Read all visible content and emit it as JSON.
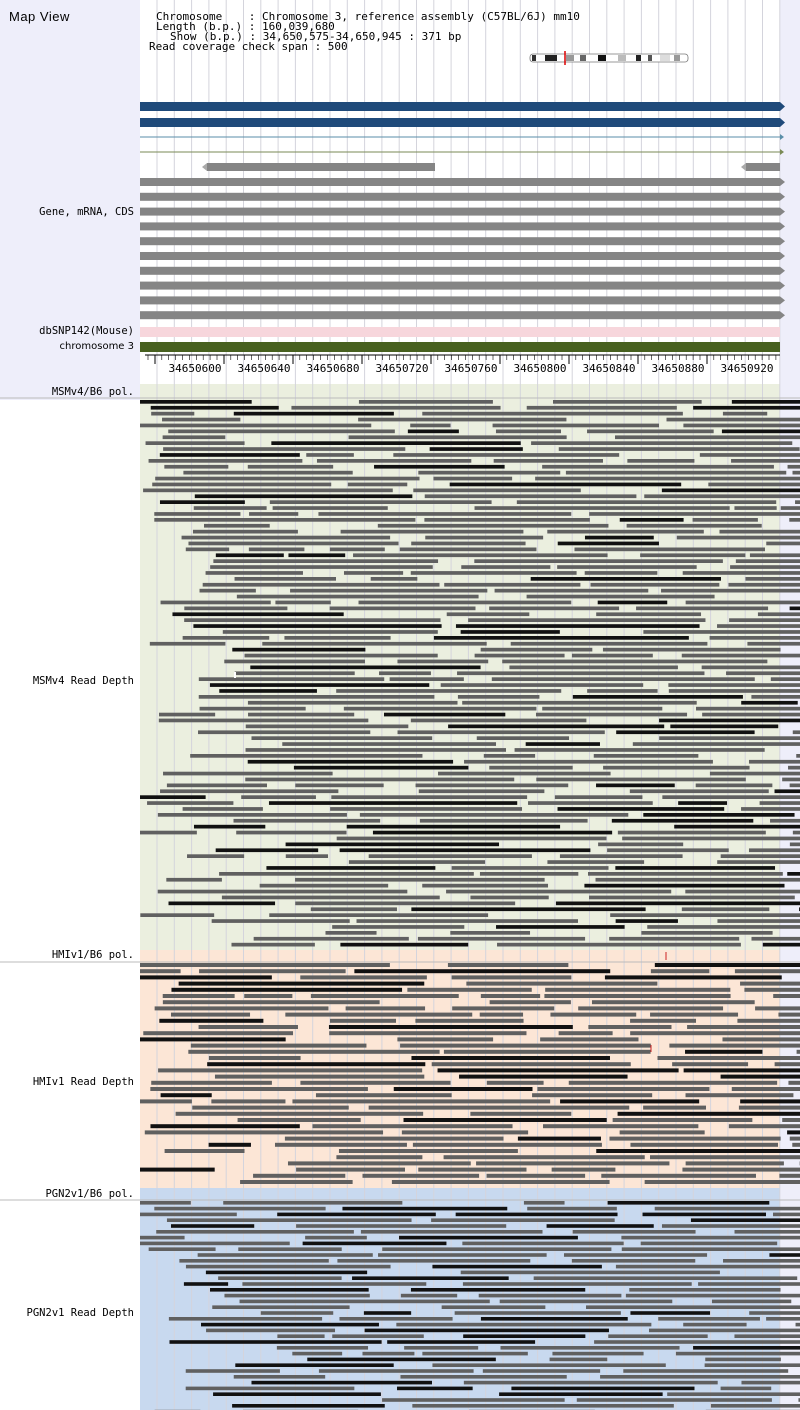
{
  "header": {
    "title": "Map View",
    "chromosome_line": "Chromosome    : Chromosome 3, reference assembly (C57BL/6J) mm10",
    "length_line": "Length (b.p.) : 160,039,680",
    "show_line": "Show (b.p.) : 34,650,575-34,650,945 : 371 bp",
    "coverage_line": "Read coverage check span : 500"
  },
  "tracks": {
    "gene_label": "Gene, mRNA, CDS",
    "dbsnp_label": "dbSNP142(Mouse)",
    "chromosome_label": "chromosome 3"
  },
  "axis": {
    "ticks": [
      "34650600",
      "34650640",
      "34650680",
      "34650720",
      "34650760",
      "34650800",
      "34650840",
      "34650880",
      "34650920"
    ]
  },
  "panels": [
    {
      "pol_label": "MSMv4/B6 pol.",
      "depth_label": "MSMv4 Read Depth",
      "color": "#ebefdf"
    },
    {
      "pol_label": "HMIv1/B6 pol.",
      "depth_label": "HMIv1 Read Depth",
      "color": "#fce6d6"
    },
    {
      "pol_label": "PGN2v1/B6 pol.",
      "depth_label": "PGN2v1 Read Depth",
      "color": "#c8d9ef"
    }
  ],
  "colors": {
    "gene_dark": "#1f4a7a",
    "gene_gray": "#858585",
    "dbsnp": "#f7d6dc",
    "chromosome_bar": "#47601f",
    "read_gray": "#606060",
    "read_black": "#111111",
    "mismatch": "#cc2222"
  }
}
